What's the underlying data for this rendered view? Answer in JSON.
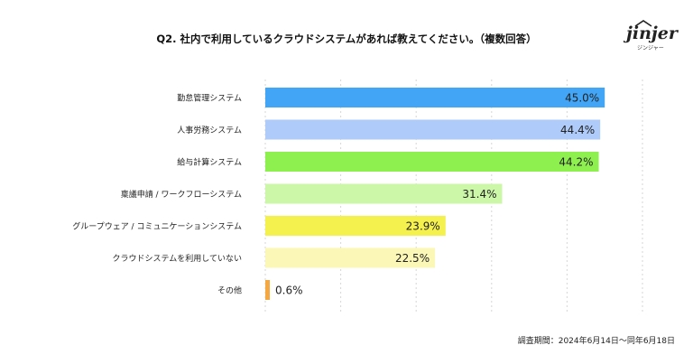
{
  "title": "Q2. 社内で利用しているクラウドシステムがあれば教えてください。（複数回答）",
  "logo": {
    "word": "jinjer",
    "sub": "ジンジャー"
  },
  "footnote": "調査期間：2024年6月14日〜同年6月18日",
  "chart_data": {
    "type": "bar",
    "orientation": "horizontal",
    "title": "Q2. 社内で利用しているクラウドシステムがあれば教えてください。（複数回答）",
    "categories": [
      "勤怠管理システム",
      "人事労務システム",
      "給与計算システム",
      "稟議申請 / ワークフローシステム",
      "グループウェア / コミュニケーションシステム",
      "クラウドシステムを利用していない",
      "その他"
    ],
    "values": [
      45.0,
      44.4,
      44.2,
      31.4,
      23.9,
      22.5,
      0.6
    ],
    "labels": [
      "45.0%",
      "44.4%",
      "44.2%",
      "31.4%",
      "23.9%",
      "22.5%",
      "0.6%"
    ],
    "colors": [
      "#42a5f5",
      "#aecbfa",
      "#8ef04f",
      "#ccf7a8",
      "#f4f04d",
      "#fbf7b6",
      "#f5a742"
    ],
    "xlim": [
      0,
      50
    ],
    "grid": true,
    "xlabel": "",
    "ylabel": ""
  }
}
